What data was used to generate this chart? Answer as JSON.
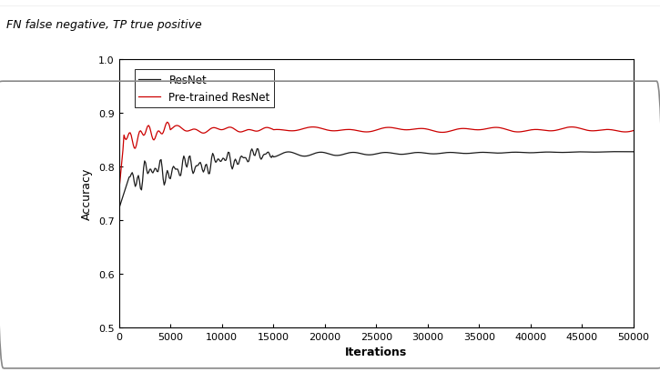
{
  "title": "",
  "xlabel": "Iterations",
  "ylabel": "Accuracy",
  "xlim": [
    0,
    50000
  ],
  "ylim": [
    0.5,
    1.0
  ],
  "yticks": [
    0.5,
    0.6,
    0.7,
    0.8,
    0.9,
    1.0
  ],
  "xticks": [
    0,
    5000,
    10000,
    15000,
    20000,
    25000,
    30000,
    35000,
    40000,
    45000,
    50000
  ],
  "resnet_color": "#1a1a1a",
  "pretrained_color": "#cc0000",
  "legend_labels": [
    "ResNet",
    "Pre-trained ResNet"
  ],
  "header_text": "FN false negative, TP true positive",
  "background_color": "#ffffff",
  "box_bg": "#f5f5f5",
  "resnet_final": 0.827,
  "pretrained_final": 0.87
}
